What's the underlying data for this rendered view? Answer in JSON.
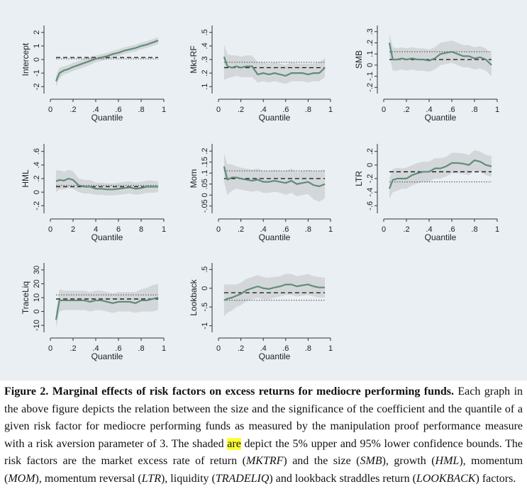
{
  "chart_data": [
    {
      "type": "line",
      "ylabel": "Intercept",
      "xlabel": "Quantile",
      "xticks": [
        "0",
        ".2",
        ".4",
        ".6",
        ".8",
        "1"
      ],
      "yticks": [
        "-2",
        "-1",
        "0",
        "1",
        "2"
      ],
      "ylim": [
        -2.3,
        2.3
      ],
      "xlim": [
        0,
        1
      ],
      "ref_dashed": 0.15,
      "ref_dotted": 0.05,
      "series": [
        {
          "x": [
            0.05,
            0.08,
            0.12,
            0.16,
            0.2,
            0.25,
            0.3,
            0.35,
            0.4,
            0.45,
            0.5,
            0.55,
            0.6,
            0.65,
            0.7,
            0.75,
            0.8,
            0.85,
            0.9,
            0.95
          ],
          "y": [
            -1.6,
            -1.0,
            -0.8,
            -0.7,
            -0.55,
            -0.4,
            -0.25,
            -0.1,
            0.05,
            0.15,
            0.25,
            0.4,
            0.5,
            0.65,
            0.75,
            0.85,
            1.0,
            1.1,
            1.25,
            1.4
          ],
          "lower": [
            -2.0,
            -1.4,
            -1.1,
            -1.0,
            -0.85,
            -0.7,
            -0.55,
            -0.4,
            -0.2,
            -0.1,
            0.0,
            0.15,
            0.25,
            0.4,
            0.5,
            0.6,
            0.75,
            0.85,
            1.0,
            1.15
          ],
          "upper": [
            -1.2,
            -0.6,
            -0.5,
            -0.4,
            -0.25,
            -0.1,
            0.05,
            0.2,
            0.3,
            0.4,
            0.5,
            0.65,
            0.75,
            0.9,
            1.0,
            1.1,
            1.25,
            1.35,
            1.5,
            1.65
          ]
        }
      ]
    },
    {
      "type": "line",
      "ylabel": "Mkt-RF",
      "xlabel": "Quantile",
      "xticks": [
        "0",
        ".2",
        ".4",
        ".6",
        ".8",
        "1"
      ],
      "yticks": [
        ".1",
        ".2",
        ".3",
        ".4",
        ".5"
      ],
      "ylim": [
        0.07,
        0.53
      ],
      "xlim": [
        0,
        1
      ],
      "ref_dashed": 0.24,
      "ref_dotted": 0.28,
      "series": [
        {
          "x": [
            0.05,
            0.08,
            0.12,
            0.16,
            0.2,
            0.25,
            0.3,
            0.35,
            0.4,
            0.45,
            0.5,
            0.55,
            0.6,
            0.65,
            0.7,
            0.75,
            0.8,
            0.85,
            0.9,
            0.95
          ],
          "y": [
            0.32,
            0.25,
            0.24,
            0.25,
            0.24,
            0.25,
            0.25,
            0.19,
            0.2,
            0.19,
            0.2,
            0.19,
            0.18,
            0.2,
            0.2,
            0.2,
            0.19,
            0.2,
            0.2,
            0.24
          ],
          "lower": [
            0.15,
            0.16,
            0.17,
            0.18,
            0.17,
            0.17,
            0.17,
            0.13,
            0.14,
            0.13,
            0.14,
            0.13,
            0.12,
            0.14,
            0.14,
            0.14,
            0.13,
            0.14,
            0.14,
            0.17
          ],
          "upper": [
            0.41,
            0.34,
            0.33,
            0.33,
            0.32,
            0.33,
            0.33,
            0.28,
            0.28,
            0.27,
            0.28,
            0.27,
            0.26,
            0.28,
            0.27,
            0.27,
            0.27,
            0.27,
            0.28,
            0.31
          ]
        }
      ]
    },
    {
      "type": "line",
      "ylabel": "SMB",
      "xlabel": "Quantile",
      "xticks": [
        "0",
        ".2",
        ".4",
        ".6",
        ".8",
        "1"
      ],
      "yticks": [
        "-.2",
        "-.1",
        "0",
        ".1",
        ".2",
        ".3"
      ],
      "ylim": [
        -0.23,
        0.33
      ],
      "xlim": [
        0,
        1
      ],
      "ref_dashed": 0.05,
      "ref_dotted": 0.12,
      "series": [
        {
          "x": [
            0.05,
            0.08,
            0.12,
            0.16,
            0.2,
            0.25,
            0.3,
            0.35,
            0.4,
            0.45,
            0.5,
            0.55,
            0.6,
            0.65,
            0.7,
            0.75,
            0.8,
            0.85,
            0.9,
            0.95
          ],
          "y": [
            0.2,
            0.05,
            0.05,
            0.06,
            0.05,
            0.06,
            0.05,
            0.05,
            0.04,
            0.06,
            0.1,
            0.11,
            0.12,
            0.1,
            0.08,
            0.08,
            0.06,
            0.07,
            0.05,
            0.0
          ],
          "lower": [
            0.08,
            -0.05,
            -0.05,
            -0.04,
            -0.05,
            -0.04,
            -0.05,
            -0.05,
            -0.06,
            -0.04,
            0.0,
            0.01,
            0.02,
            0.0,
            -0.02,
            -0.02,
            -0.04,
            -0.03,
            -0.05,
            -0.1
          ],
          "upper": [
            0.28,
            0.16,
            0.15,
            0.16,
            0.15,
            0.16,
            0.15,
            0.15,
            0.14,
            0.16,
            0.2,
            0.21,
            0.22,
            0.2,
            0.18,
            0.18,
            0.16,
            0.17,
            0.15,
            0.1
          ]
        }
      ]
    },
    {
      "type": "line",
      "ylabel": "HML",
      "xlabel": "Quantile",
      "xticks": [
        "0",
        "2",
        "4",
        "6",
        "8",
        "1"
      ],
      "yticks": [
        "-.2",
        "0",
        ".2",
        ".4",
        ".6"
      ],
      "ylim": [
        -0.27,
        0.67
      ],
      "xlim": [
        0,
        1
      ],
      "ref_dashed": 0.08,
      "ref_dotted": 0.1,
      "series": [
        {
          "x": [
            0.05,
            0.08,
            0.12,
            0.16,
            0.2,
            0.25,
            0.3,
            0.35,
            0.4,
            0.45,
            0.5,
            0.55,
            0.6,
            0.65,
            0.7,
            0.75,
            0.8,
            0.85,
            0.9,
            0.95
          ],
          "y": [
            0.16,
            0.18,
            0.17,
            0.2,
            0.18,
            0.1,
            0.08,
            0.08,
            0.05,
            0.05,
            0.04,
            0.04,
            0.05,
            0.06,
            0.07,
            0.05,
            0.06,
            0.08,
            0.08,
            0.08
          ],
          "lower": [
            0.0,
            0.04,
            0.04,
            0.06,
            0.05,
            0.0,
            -0.02,
            -0.02,
            -0.04,
            -0.04,
            -0.05,
            -0.05,
            -0.04,
            -0.03,
            -0.02,
            -0.04,
            -0.03,
            -0.01,
            -0.01,
            0.0
          ],
          "upper": [
            0.32,
            0.32,
            0.3,
            0.33,
            0.31,
            0.2,
            0.18,
            0.18,
            0.14,
            0.14,
            0.13,
            0.13,
            0.14,
            0.15,
            0.16,
            0.14,
            0.15,
            0.17,
            0.17,
            0.16
          ]
        }
      ]
    },
    {
      "type": "line",
      "ylabel": "Mom",
      "xlabel": "Quantile",
      "xticks": [
        "0",
        ".2",
        ".4",
        ".6",
        ".8",
        "1"
      ],
      "yticks": [
        "-.05",
        "0",
        ".05",
        ".1",
        ".15",
        ".2"
      ],
      "ylim": [
        -0.07,
        0.22
      ],
      "xlim": [
        0,
        1
      ],
      "ref_dashed": 0.075,
      "ref_dotted": 0.11,
      "series": [
        {
          "x": [
            0.05,
            0.08,
            0.12,
            0.16,
            0.2,
            0.25,
            0.3,
            0.35,
            0.4,
            0.45,
            0.5,
            0.55,
            0.6,
            0.65,
            0.7,
            0.75,
            0.8,
            0.85,
            0.9,
            0.95
          ],
          "y": [
            0.13,
            0.07,
            0.08,
            0.08,
            0.075,
            0.07,
            0.065,
            0.07,
            0.06,
            0.06,
            0.065,
            0.06,
            0.055,
            0.065,
            0.05,
            0.055,
            0.06,
            0.045,
            0.04,
            0.05
          ],
          "lower": [
            0.06,
            0.0,
            0.02,
            0.03,
            0.025,
            0.02,
            0.015,
            0.02,
            0.01,
            0.01,
            0.015,
            0.01,
            0.0,
            0.01,
            -0.005,
            0.0,
            0.005,
            -0.02,
            -0.03,
            -0.015
          ],
          "upper": [
            0.19,
            0.14,
            0.14,
            0.13,
            0.125,
            0.12,
            0.115,
            0.12,
            0.11,
            0.11,
            0.115,
            0.11,
            0.11,
            0.12,
            0.105,
            0.11,
            0.115,
            0.11,
            0.11,
            0.115
          ]
        }
      ]
    },
    {
      "type": "line",
      "ylabel": "LTR",
      "xlabel": "Quantile",
      "xticks": [
        "0",
        ".2",
        ".4",
        ".6",
        ".8",
        "1"
      ],
      "yticks": [
        "-.6",
        "-.4",
        "-.2",
        "0",
        ".2"
      ],
      "ylim": [
        -0.67,
        0.27
      ],
      "xlim": [
        0,
        1
      ],
      "ref_dashed": -0.1,
      "ref_dotted": -0.25,
      "series": [
        {
          "x": [
            0.05,
            0.08,
            0.12,
            0.16,
            0.2,
            0.25,
            0.3,
            0.35,
            0.4,
            0.45,
            0.5,
            0.55,
            0.6,
            0.65,
            0.7,
            0.75,
            0.8,
            0.85,
            0.9,
            0.95
          ],
          "y": [
            -0.35,
            -0.22,
            -0.2,
            -0.2,
            -0.2,
            -0.15,
            -0.12,
            -0.1,
            -0.1,
            -0.05,
            -0.05,
            -0.02,
            0.03,
            0.03,
            0.02,
            0.0,
            0.07,
            0.05,
            0.0,
            -0.02
          ],
          "lower": [
            -0.5,
            -0.4,
            -0.38,
            -0.35,
            -0.35,
            -0.3,
            -0.27,
            -0.25,
            -0.25,
            -0.2,
            -0.2,
            -0.17,
            -0.12,
            -0.12,
            -0.13,
            -0.15,
            -0.08,
            -0.1,
            -0.15,
            -0.17
          ],
          "upper": [
            -0.2,
            -0.06,
            -0.04,
            -0.05,
            -0.04,
            0.0,
            0.03,
            0.05,
            0.05,
            0.1,
            0.1,
            0.12,
            0.18,
            0.18,
            0.17,
            0.15,
            0.22,
            0.2,
            0.15,
            0.13
          ]
        }
      ]
    },
    {
      "type": "line",
      "ylabel": "TraceLiq",
      "xlabel": "Quantile",
      "xticks": [
        "0",
        ".2",
        ".4",
        ".6",
        ".8",
        "1"
      ],
      "yticks": [
        "-10",
        "0",
        "10",
        "20",
        "30"
      ],
      "ylim": [
        -13,
        33
      ],
      "xlim": [
        0,
        1
      ],
      "ref_dashed": 9,
      "ref_dotted": 12,
      "series": [
        {
          "x": [
            0.05,
            0.08,
            0.12,
            0.16,
            0.2,
            0.25,
            0.3,
            0.35,
            0.4,
            0.45,
            0.5,
            0.55,
            0.6,
            0.65,
            0.7,
            0.75,
            0.8,
            0.85,
            0.9,
            0.95
          ],
          "y": [
            -6,
            8,
            8,
            8,
            8,
            8,
            8,
            7,
            8,
            8,
            7,
            6,
            7,
            7,
            7,
            6,
            8,
            8,
            9,
            10
          ],
          "lower": [
            -12,
            0,
            1,
            1,
            1,
            1,
            1,
            0,
            1,
            1,
            0,
            -1,
            0,
            0,
            0,
            -1,
            0,
            0,
            0,
            1
          ],
          "upper": [
            0,
            16,
            15,
            15,
            15,
            15,
            15,
            14,
            15,
            15,
            14,
            13,
            14,
            14,
            14,
            14,
            16,
            17,
            19,
            20
          ]
        }
      ]
    },
    {
      "type": "line",
      "ylabel": "Lookback",
      "xlabel": "Quantile",
      "xticks": [
        "0",
        ".2",
        ".4",
        ".6",
        ".8",
        "1"
      ],
      "yticks": [
        "-1",
        "-.5",
        "0",
        ".5"
      ],
      "ylim": [
        -1.1,
        0.6
      ],
      "xlim": [
        0,
        1
      ],
      "ref_dashed": -0.12,
      "ref_dotted": -0.32,
      "series": [
        {
          "x": [
            0.05,
            0.08,
            0.12,
            0.16,
            0.2,
            0.25,
            0.3,
            0.35,
            0.4,
            0.45,
            0.5,
            0.55,
            0.6,
            0.65,
            0.7,
            0.75,
            0.8,
            0.85,
            0.9,
            0.95
          ],
          "y": [
            -0.32,
            -0.28,
            -0.25,
            -0.2,
            -0.15,
            -0.05,
            0.0,
            0.05,
            0.0,
            -0.02,
            0.02,
            0.05,
            0.1,
            0.1,
            0.05,
            0.08,
            0.1,
            0.05,
            0.02,
            0.02
          ],
          "lower": [
            -0.75,
            -0.65,
            -0.6,
            -0.5,
            -0.45,
            -0.35,
            -0.3,
            -0.25,
            -0.3,
            -0.3,
            -0.25,
            -0.22,
            -0.18,
            -0.18,
            -0.22,
            -0.2,
            -0.18,
            -0.22,
            -0.25,
            -0.25
          ],
          "upper": [
            0.1,
            0.1,
            0.1,
            0.1,
            0.15,
            0.25,
            0.3,
            0.35,
            0.3,
            0.28,
            0.3,
            0.32,
            0.38,
            0.38,
            0.32,
            0.35,
            0.38,
            0.32,
            0.3,
            0.28
          ]
        }
      ]
    }
  ],
  "caption": {
    "fig_label": "Figure 2.",
    "title": " Marginal effects of risk factors on excess returns for mediocre performing funds.",
    "text1": " Each graph in the above figure depicts the relation between the size and the significance of the coefficient and the quantile of a given risk factor for mediocre performing funds as measured by the manipulation proof performance measure with a risk aversion parameter of 3. The shaded ",
    "highlight": "are",
    "text2": " depict the 5% upper and 95% lower confidence bounds. The risk factors are the market excess rate of return (",
    "mktrf": "MKTRF",
    "text3": ") and the size (",
    "smb": "SMB",
    "text4": "), growth (",
    "hml": "HML",
    "text5": "), momentum (",
    "mom": "MOM",
    "text6": "), momentum reversal (",
    "ltr": "LTR",
    "text7": "), liquidity (",
    "tradeliq": "TRADELIQ",
    "text8": ") and lookback straddles return (",
    "lookback": "LOOKBACK",
    "text9": ") factors."
  },
  "colors": {
    "band": "#d4d7d9",
    "line": "#5f8c7a",
    "background": "#e9eff3"
  }
}
